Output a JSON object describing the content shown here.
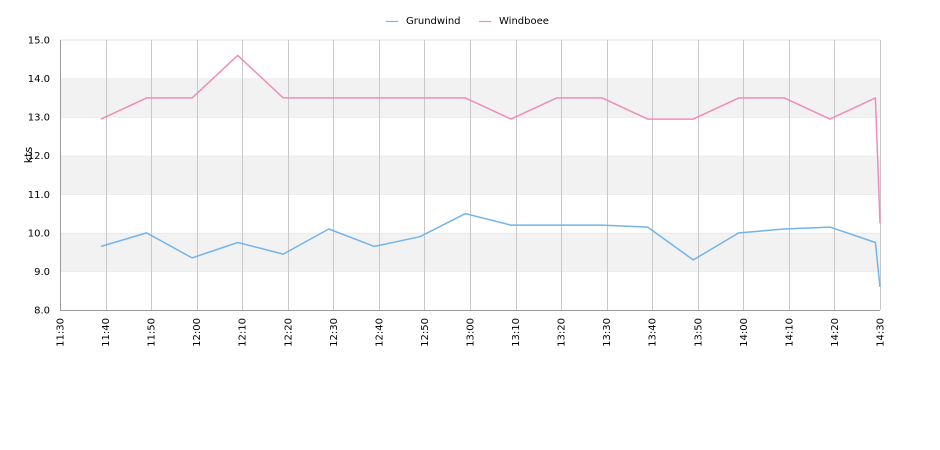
{
  "chart_data": {
    "type": "line",
    "ylabel": "kts",
    "ylim": [
      8.0,
      15.0
    ],
    "y_ticks": [
      "8.0",
      "9.0",
      "10.0",
      "11.0",
      "12.0",
      "13.0",
      "14.0",
      "15.0"
    ],
    "x_ticks": [
      "11:30",
      "11:40",
      "11:50",
      "12:00",
      "12:10",
      "12:20",
      "12:30",
      "12:40",
      "12:50",
      "13:00",
      "13:10",
      "13:20",
      "13:30",
      "13:40",
      "13:50",
      "14:00",
      "14:10",
      "14:20",
      "14:30"
    ],
    "xlim": [
      "11:30",
      "14:30"
    ],
    "alternate_bands": true,
    "vertical_grid": true,
    "legend_position": "top-center",
    "series": [
      {
        "name": "Grundwind",
        "color": "#72b4ec",
        "x": [
          "11:39",
          "11:49",
          "11:59",
          "12:09",
          "12:19",
          "12:29",
          "12:39",
          "12:49",
          "12:59",
          "13:09",
          "13:19",
          "13:29",
          "13:39",
          "13:49",
          "13:59",
          "14:09",
          "14:19",
          "14:29",
          "14:30"
        ],
        "values": [
          9.65,
          10.0,
          9.35,
          9.75,
          9.45,
          10.1,
          9.65,
          9.9,
          10.5,
          10.2,
          10.2,
          10.2,
          10.15,
          9.3,
          10.0,
          10.1,
          10.15,
          9.75,
          8.6
        ]
      },
      {
        "name": "Windboee",
        "color": "#f08cba",
        "x": [
          "11:39",
          "11:49",
          "11:59",
          "12:09",
          "12:19",
          "12:29",
          "12:39",
          "12:49",
          "12:59",
          "13:09",
          "13:19",
          "13:29",
          "13:39",
          "13:49",
          "13:59",
          "14:09",
          "14:19",
          "14:29",
          "14:30"
        ],
        "values": [
          12.95,
          13.5,
          13.5,
          14.6,
          13.5,
          13.5,
          13.5,
          13.5,
          13.5,
          12.95,
          13.5,
          13.5,
          12.95,
          12.95,
          13.5,
          13.5,
          12.95,
          13.5,
          10.25
        ]
      }
    ]
  }
}
